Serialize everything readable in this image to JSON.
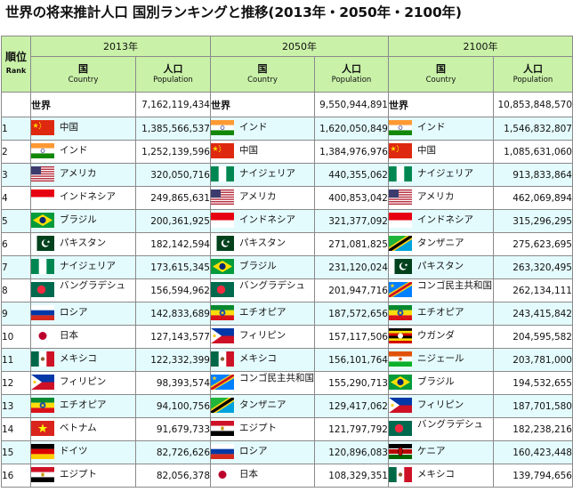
{
  "title": "世界の将来推計人口 国別ランキングと推移(2013年・2050年・2100年)",
  "header": {
    "rank_jp": "順位",
    "rank_en": "Rank",
    "years": [
      "2013年",
      "2050年",
      "2100年"
    ],
    "country_jp": "国",
    "country_en": "Country",
    "population_jp": "人口",
    "population_en": "Population"
  },
  "world": {
    "label": "世界",
    "values": [
      "7,162,119,434",
      "9,550,944,891",
      "10,853,848,570"
    ]
  },
  "colors": {
    "header_bg": "#c9f1a8",
    "alt_row_bg": "#e4fbfd",
    "border": "#8a8a8a"
  },
  "rows": [
    {
      "rank": "1",
      "c2013": {
        "name": "中国",
        "flag": "china-flag-icon",
        "pop": "1,385,566,537"
      },
      "c2050": {
        "name": "インド",
        "flag": "india-flag-icon",
        "pop": "1,620,050,849"
      },
      "c2100": {
        "name": "インド",
        "flag": "india-flag-icon",
        "pop": "1,546,832,807"
      }
    },
    {
      "rank": "2",
      "c2013": {
        "name": "インド",
        "flag": "india-flag-icon",
        "pop": "1,252,139,596"
      },
      "c2050": {
        "name": "中国",
        "flag": "china-flag-icon",
        "pop": "1,384,976,976"
      },
      "c2100": {
        "name": "中国",
        "flag": "china-flag-icon",
        "pop": "1,085,631,060"
      }
    },
    {
      "rank": "3",
      "c2013": {
        "name": "アメリカ",
        "flag": "usa-flag-icon",
        "pop": "320,050,716"
      },
      "c2050": {
        "name": "ナイジェリア",
        "flag": "nigeria-flag-icon",
        "pop": "440,355,062"
      },
      "c2100": {
        "name": "ナイジェリア",
        "flag": "nigeria-flag-icon",
        "pop": "913,833,864"
      }
    },
    {
      "rank": "4",
      "c2013": {
        "name": "インドネシア",
        "flag": "indonesia-flag-icon",
        "pop": "249,865,631"
      },
      "c2050": {
        "name": "アメリカ",
        "flag": "usa-flag-icon",
        "pop": "400,853,042"
      },
      "c2100": {
        "name": "アメリカ",
        "flag": "usa-flag-icon",
        "pop": "462,069,894"
      }
    },
    {
      "rank": "5",
      "c2013": {
        "name": "ブラジル",
        "flag": "brazil-flag-icon",
        "pop": "200,361,925"
      },
      "c2050": {
        "name": "インドネシア",
        "flag": "indonesia-flag-icon",
        "pop": "321,377,092"
      },
      "c2100": {
        "name": "インドネシア",
        "flag": "indonesia-flag-icon",
        "pop": "315,296,295"
      }
    },
    {
      "rank": "6",
      "c2013": {
        "name": "パキスタン",
        "flag": "pakistan-flag-icon",
        "pop": "182,142,594"
      },
      "c2050": {
        "name": "パキスタン",
        "flag": "pakistan-flag-icon",
        "pop": "271,081,825"
      },
      "c2100": {
        "name": "タンザニア",
        "flag": "tanzania-flag-icon",
        "pop": "275,623,695"
      }
    },
    {
      "rank": "7",
      "c2013": {
        "name": "ナイジェリア",
        "flag": "nigeria-flag-icon",
        "pop": "173,615,345"
      },
      "c2050": {
        "name": "ブラジル",
        "flag": "brazil-flag-icon",
        "pop": "231,120,024"
      },
      "c2100": {
        "name": "パキスタン",
        "flag": "pakistan-flag-icon",
        "pop": "263,320,495"
      }
    },
    {
      "rank": "8",
      "c2013": {
        "name": "バングラデシュ",
        "flag": "bangladesh-flag-icon",
        "pop": "156,594,962"
      },
      "c2050": {
        "name": "バングラデシュ",
        "flag": "bangladesh-flag-icon",
        "pop": "201,947,716"
      },
      "c2100": {
        "name": "コンゴ民主共和国",
        "flag": "dr-congo-flag-icon",
        "pop": "262,134,111"
      }
    },
    {
      "rank": "9",
      "c2013": {
        "name": "ロシア",
        "flag": "russia-flag-icon",
        "pop": "142,833,689"
      },
      "c2050": {
        "name": "エチオピア",
        "flag": "ethiopia-flag-icon",
        "pop": "187,572,656"
      },
      "c2100": {
        "name": "エチオピア",
        "flag": "ethiopia-flag-icon",
        "pop": "243,415,842"
      }
    },
    {
      "rank": "10",
      "c2013": {
        "name": "日本",
        "flag": "japan-flag-icon",
        "pop": "127,143,577"
      },
      "c2050": {
        "name": "フィリピン",
        "flag": "philippines-flag-icon",
        "pop": "157,117,506"
      },
      "c2100": {
        "name": "ウガンダ",
        "flag": "uganda-flag-icon",
        "pop": "204,595,582"
      }
    },
    {
      "rank": "11",
      "c2013": {
        "name": "メキシコ",
        "flag": "mexico-flag-icon",
        "pop": "122,332,399"
      },
      "c2050": {
        "name": "メキシコ",
        "flag": "mexico-flag-icon",
        "pop": "156,101,764"
      },
      "c2100": {
        "name": "ニジェール",
        "flag": "niger-flag-icon",
        "pop": "203,781,000"
      }
    },
    {
      "rank": "12",
      "c2013": {
        "name": "フィリピン",
        "flag": "philippines-flag-icon",
        "pop": "98,393,574"
      },
      "c2050": {
        "name": "コンゴ民主共和国",
        "flag": "dr-congo-flag-icon",
        "pop": "155,290,713"
      },
      "c2100": {
        "name": "ブラジル",
        "flag": "brazil-flag-icon",
        "pop": "194,532,655"
      }
    },
    {
      "rank": "13",
      "c2013": {
        "name": "エチオピア",
        "flag": "ethiopia-flag-icon",
        "pop": "94,100,756"
      },
      "c2050": {
        "name": "タンザニア",
        "flag": "tanzania-flag-icon",
        "pop": "129,417,062"
      },
      "c2100": {
        "name": "フィリピン",
        "flag": "philippines-flag-icon",
        "pop": "187,701,580"
      }
    },
    {
      "rank": "14",
      "c2013": {
        "name": "ベトナム",
        "flag": "vietnam-flag-icon",
        "pop": "91,679,733"
      },
      "c2050": {
        "name": "エジプト",
        "flag": "egypt-flag-icon",
        "pop": "121,797,792"
      },
      "c2100": {
        "name": "バングラデシュ",
        "flag": "bangladesh-flag-icon",
        "pop": "182,238,216"
      }
    },
    {
      "rank": "15",
      "c2013": {
        "name": "ドイツ",
        "flag": "germany-flag-icon",
        "pop": "82,726,626"
      },
      "c2050": {
        "name": "ロシア",
        "flag": "russia-flag-icon",
        "pop": "120,896,083"
      },
      "c2100": {
        "name": "ケニア",
        "flag": "kenya-flag-icon",
        "pop": "160,423,448"
      }
    },
    {
      "rank": "16",
      "c2013": {
        "name": "エジプト",
        "flag": "egypt-flag-icon",
        "pop": "82,056,378"
      },
      "c2050": {
        "name": "日本",
        "flag": "japan-flag-icon",
        "pop": "108,329,351"
      },
      "c2100": {
        "name": "メキシコ",
        "flag": "mexico-flag-icon",
        "pop": "139,794,656"
      }
    }
  ]
}
